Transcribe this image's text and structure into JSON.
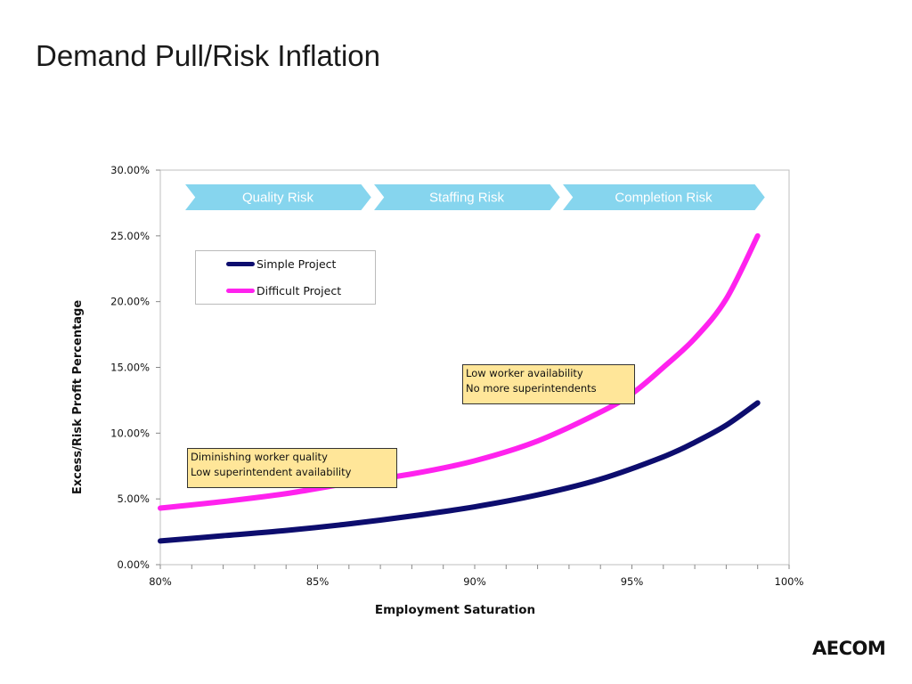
{
  "title": "Demand Pull/Risk Inflation",
  "logo_text": "AECOM",
  "colors": {
    "simple": "#0d0d6e",
    "difficult": "#ff22ee",
    "chevron": "#86d5ee",
    "annotation_bg": "#ffe699"
  },
  "chart_data": {
    "type": "line",
    "xlabel": "Employment Saturation",
    "ylabel": "Excess/Risk Profit Percentage",
    "xlim": [
      80,
      100
    ],
    "ylim": [
      0,
      30
    ],
    "x_ticks": [
      "80%",
      "85%",
      "90%",
      "95%",
      "100%"
    ],
    "y_ticks": [
      "0.00%",
      "5.00%",
      "10.00%",
      "15.00%",
      "20.00%",
      "25.00%",
      "30.00%"
    ],
    "legend_position": "top-left",
    "series": [
      {
        "name": "Simple Project",
        "x": [
          80,
          82,
          84,
          86,
          88,
          90,
          92,
          94,
          96,
          97,
          98,
          99
        ],
        "y": [
          1.8,
          2.2,
          2.6,
          3.1,
          3.7,
          4.4,
          5.3,
          6.5,
          8.2,
          9.3,
          10.6,
          12.3
        ]
      },
      {
        "name": "Difficult Project",
        "x": [
          80,
          82,
          84,
          86,
          88,
          90,
          92,
          94,
          95,
          96,
          97,
          98,
          99
        ],
        "y": [
          4.3,
          4.8,
          5.4,
          6.2,
          6.9,
          7.9,
          9.4,
          11.6,
          13.0,
          15.0,
          17.2,
          20.2,
          25.0
        ]
      }
    ],
    "phases": [
      "Quality Risk",
      "Staffing Risk",
      "Completion Risk"
    ],
    "annotations": [
      {
        "lines": [
          "Diminishing worker quality",
          "Low superintendent availability"
        ]
      },
      {
        "lines": [
          "Low worker availability",
          "No more superintendents"
        ]
      }
    ]
  }
}
